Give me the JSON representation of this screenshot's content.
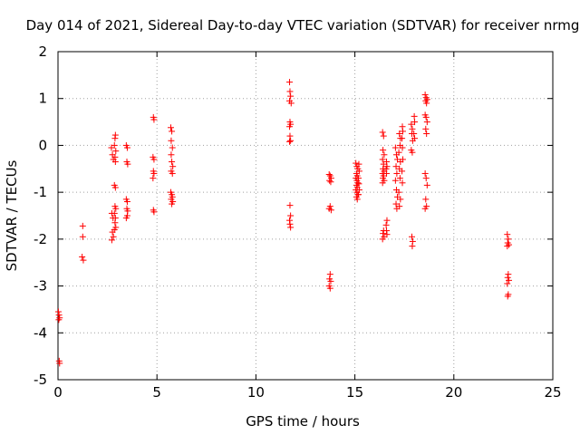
{
  "chart_data": {
    "type": "scatter",
    "title": "Day 014 of 2021, Sidereal Day-to-day VTEC variation (SDTVAR) for receiver nrmg",
    "xlabel": "GPS time / hours",
    "ylabel": "SDTVAR / TECUs",
    "xlim": [
      0,
      25
    ],
    "ylim": [
      -5,
      2
    ],
    "xticks": [
      0,
      5,
      10,
      15,
      20,
      25
    ],
    "yticks": [
      -5,
      -4,
      -3,
      -2,
      -1,
      0,
      1,
      2
    ],
    "grid": true,
    "marker": "+",
    "series": [
      {
        "name": "SDTVAR",
        "color": "#ff0000",
        "points": [
          [
            0.02,
            -3.55
          ],
          [
            0.05,
            -3.62
          ],
          [
            0.08,
            -3.68
          ],
          [
            0.04,
            -3.72
          ],
          [
            0.06,
            -4.6
          ],
          [
            0.08,
            -4.65
          ],
          [
            1.25,
            -1.72
          ],
          [
            1.25,
            -1.95
          ],
          [
            1.22,
            -2.38
          ],
          [
            1.28,
            -2.45
          ],
          [
            2.7,
            -0.05
          ],
          [
            2.75,
            -0.2
          ],
          [
            2.8,
            -0.3
          ],
          [
            2.72,
            -1.45
          ],
          [
            2.78,
            -1.55
          ],
          [
            2.75,
            -1.85
          ],
          [
            2.8,
            -1.95
          ],
          [
            2.72,
            -2.02
          ],
          [
            2.88,
            0.15
          ],
          [
            2.9,
            0.22
          ],
          [
            2.85,
            0.0
          ],
          [
            2.92,
            -0.12
          ],
          [
            2.88,
            -0.25
          ],
          [
            2.9,
            -0.35
          ],
          [
            2.85,
            -0.85
          ],
          [
            2.9,
            -0.9
          ],
          [
            2.88,
            -1.3
          ],
          [
            2.92,
            -1.35
          ],
          [
            2.85,
            -1.45
          ],
          [
            2.9,
            -1.55
          ],
          [
            2.88,
            -1.65
          ],
          [
            2.92,
            -1.75
          ],
          [
            2.85,
            -1.8
          ],
          [
            3.45,
            0.0
          ],
          [
            3.5,
            -0.05
          ],
          [
            3.48,
            -0.35
          ],
          [
            3.52,
            -0.4
          ],
          [
            3.45,
            -1.15
          ],
          [
            3.5,
            -1.2
          ],
          [
            3.48,
            -1.35
          ],
          [
            3.52,
            -1.4
          ],
          [
            3.5,
            -1.5
          ],
          [
            3.45,
            -1.55
          ],
          [
            4.82,
            0.6
          ],
          [
            4.85,
            0.55
          ],
          [
            4.8,
            -0.25
          ],
          [
            4.85,
            -0.3
          ],
          [
            4.82,
            -0.55
          ],
          [
            4.85,
            -0.6
          ],
          [
            4.8,
            -0.7
          ],
          [
            4.82,
            -1.38
          ],
          [
            4.85,
            -1.42
          ],
          [
            5.7,
            0.38
          ],
          [
            5.75,
            0.3
          ],
          [
            5.72,
            0.1
          ],
          [
            5.78,
            -0.05
          ],
          [
            5.72,
            -0.2
          ],
          [
            5.75,
            -0.35
          ],
          [
            5.8,
            -0.45
          ],
          [
            5.72,
            -0.55
          ],
          [
            5.78,
            -0.6
          ],
          [
            5.7,
            -1.0
          ],
          [
            5.75,
            -1.05
          ],
          [
            5.78,
            -1.1
          ],
          [
            5.72,
            -1.15
          ],
          [
            5.8,
            -1.2
          ],
          [
            5.75,
            -1.25
          ],
          [
            11.7,
            1.35
          ],
          [
            11.72,
            1.15
          ],
          [
            11.75,
            1.05
          ],
          [
            11.7,
            0.95
          ],
          [
            11.78,
            0.9
          ],
          [
            11.72,
            0.5
          ],
          [
            11.75,
            0.45
          ],
          [
            11.7,
            0.4
          ],
          [
            11.72,
            0.2
          ],
          [
            11.75,
            0.1
          ],
          [
            11.7,
            0.08
          ],
          [
            11.72,
            -1.28
          ],
          [
            11.75,
            -1.5
          ],
          [
            11.7,
            -1.6
          ],
          [
            11.72,
            -1.68
          ],
          [
            11.75,
            -1.75
          ],
          [
            13.7,
            -0.62
          ],
          [
            13.75,
            -0.65
          ],
          [
            13.8,
            -0.7
          ],
          [
            13.72,
            -0.75
          ],
          [
            13.78,
            -0.78
          ],
          [
            13.75,
            -1.3
          ],
          [
            13.7,
            -1.35
          ],
          [
            13.8,
            -1.38
          ],
          [
            13.75,
            -2.75
          ],
          [
            13.72,
            -2.85
          ],
          [
            13.78,
            -2.9
          ],
          [
            13.7,
            -3.0
          ],
          [
            13.75,
            -3.05
          ],
          [
            15.05,
            -0.38
          ],
          [
            15.1,
            -0.45
          ],
          [
            15.15,
            -0.5
          ],
          [
            15.08,
            -0.6
          ],
          [
            15.12,
            -0.65
          ],
          [
            15.05,
            -0.7
          ],
          [
            15.1,
            -0.75
          ],
          [
            15.15,
            -0.8
          ],
          [
            15.08,
            -0.85
          ],
          [
            15.12,
            -0.9
          ],
          [
            15.05,
            -0.95
          ],
          [
            15.1,
            -1.0
          ],
          [
            15.15,
            -1.05
          ],
          [
            15.08,
            -1.1
          ],
          [
            15.12,
            -1.15
          ],
          [
            15.2,
            -0.4
          ],
          [
            15.22,
            -0.55
          ],
          [
            15.18,
            -0.7
          ],
          [
            15.2,
            -0.82
          ],
          [
            15.22,
            -0.95
          ],
          [
            15.18,
            -1.05
          ],
          [
            16.4,
            0.28
          ],
          [
            16.45,
            0.2
          ],
          [
            16.42,
            -0.1
          ],
          [
            16.48,
            -0.2
          ],
          [
            16.4,
            -0.3
          ],
          [
            16.45,
            -0.4
          ],
          [
            16.42,
            -0.5
          ],
          [
            16.48,
            -0.55
          ],
          [
            16.4,
            -0.6
          ],
          [
            16.45,
            -0.65
          ],
          [
            16.42,
            -0.7
          ],
          [
            16.48,
            -0.75
          ],
          [
            16.4,
            -0.8
          ],
          [
            16.45,
            -1.82
          ],
          [
            16.42,
            -1.88
          ],
          [
            16.48,
            -1.95
          ],
          [
            16.4,
            -2.0
          ],
          [
            16.6,
            -0.35
          ],
          [
            16.62,
            -0.45
          ],
          [
            16.58,
            -0.5
          ],
          [
            16.6,
            -0.6
          ],
          [
            16.62,
            -1.6
          ],
          [
            16.58,
            -1.7
          ],
          [
            16.6,
            -1.82
          ],
          [
            16.62,
            -1.9
          ],
          [
            17.05,
            -0.05
          ],
          [
            17.1,
            -0.2
          ],
          [
            17.15,
            -0.3
          ],
          [
            17.08,
            -0.45
          ],
          [
            17.12,
            -0.6
          ],
          [
            17.05,
            -0.75
          ],
          [
            17.1,
            -0.95
          ],
          [
            17.15,
            -1.1
          ],
          [
            17.08,
            -1.25
          ],
          [
            17.12,
            -1.35
          ],
          [
            17.25,
            0.25
          ],
          [
            17.3,
            0.15
          ],
          [
            17.28,
            0.0
          ],
          [
            17.22,
            -0.15
          ],
          [
            17.3,
            -0.35
          ],
          [
            17.25,
            -0.5
          ],
          [
            17.28,
            -0.7
          ],
          [
            17.22,
            -1.0
          ],
          [
            17.3,
            -1.15
          ],
          [
            17.25,
            -1.3
          ],
          [
            17.4,
            0.4
          ],
          [
            17.42,
            0.3
          ],
          [
            17.38,
            0.15
          ],
          [
            17.4,
            -0.05
          ],
          [
            17.42,
            -0.3
          ],
          [
            17.38,
            -0.55
          ],
          [
            17.4,
            -0.8
          ],
          [
            17.85,
            0.45
          ],
          [
            17.9,
            0.35
          ],
          [
            17.88,
            0.25
          ],
          [
            17.92,
            0.1
          ],
          [
            17.85,
            -0.1
          ],
          [
            17.9,
            -0.15
          ],
          [
            17.88,
            -1.95
          ],
          [
            17.92,
            -2.05
          ],
          [
            17.9,
            -2.15
          ],
          [
            18.0,
            0.62
          ],
          [
            18.02,
            0.5
          ],
          [
            17.98,
            0.25
          ],
          [
            18.02,
            0.15
          ],
          [
            18.55,
            1.08
          ],
          [
            18.6,
            1.02
          ],
          [
            18.65,
            0.98
          ],
          [
            18.58,
            0.95
          ],
          [
            18.62,
            0.9
          ],
          [
            18.55,
            0.65
          ],
          [
            18.6,
            0.6
          ],
          [
            18.65,
            0.5
          ],
          [
            18.58,
            0.35
          ],
          [
            18.62,
            0.25
          ],
          [
            18.55,
            -0.6
          ],
          [
            18.6,
            -0.7
          ],
          [
            18.65,
            -0.85
          ],
          [
            18.58,
            -1.15
          ],
          [
            18.62,
            -1.3
          ],
          [
            18.55,
            -1.35
          ],
          [
            22.7,
            -1.9
          ],
          [
            22.75,
            -2.0
          ],
          [
            22.72,
            -2.08
          ],
          [
            22.78,
            -2.12
          ],
          [
            22.7,
            -2.15
          ],
          [
            22.75,
            -2.75
          ],
          [
            22.72,
            -2.82
          ],
          [
            22.78,
            -2.88
          ],
          [
            22.7,
            -2.95
          ],
          [
            22.75,
            -3.18
          ],
          [
            22.72,
            -3.22
          ]
        ]
      }
    ]
  }
}
